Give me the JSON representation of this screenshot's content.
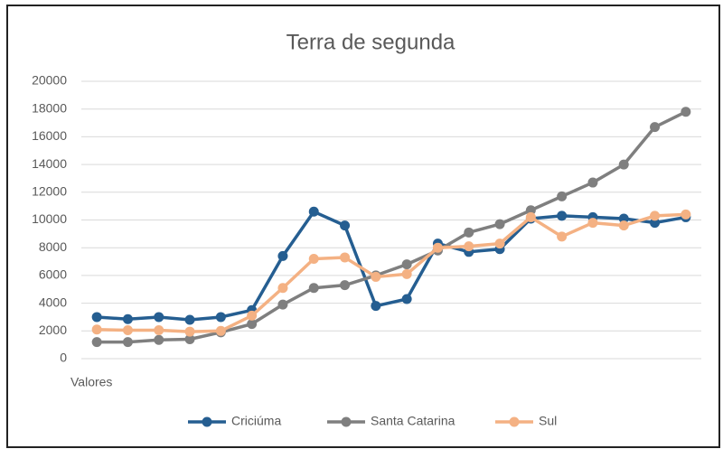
{
  "chart_data": {
    "type": "line",
    "title": "Terra de segunda",
    "xlabel": "Valores",
    "categories": [
      null,
      null,
      null,
      null,
      null,
      null,
      null,
      null,
      null,
      null,
      null,
      null,
      null,
      null,
      null,
      null,
      null,
      null,
      null,
      null
    ],
    "series": [
      {
        "name": "Criciúma",
        "color": "#255e91",
        "values": [
          3000,
          2850,
          3000,
          2800,
          3000,
          3500,
          7400,
          10600,
          9600,
          3800,
          4300,
          8300,
          7700,
          7900,
          10100,
          10300,
          10200,
          10100,
          9800,
          10200
        ]
      },
      {
        "name": "Santa Catarina",
        "color": "#7f7f7f",
        "values": [
          1200,
          1200,
          1350,
          1400,
          1900,
          2500,
          3900,
          5100,
          5300,
          6000,
          6800,
          7800,
          9100,
          9700,
          10700,
          11700,
          12700,
          14000,
          16700,
          17800
        ]
      },
      {
        "name": "Sul",
        "color": "#f4b183",
        "values": [
          2100,
          2050,
          2050,
          1950,
          2000,
          3100,
          5100,
          7200,
          7300,
          5900,
          6100,
          8000,
          8100,
          8300,
          10200,
          8800,
          9800,
          9600,
          10300,
          10400
        ]
      }
    ],
    "ylim": [
      0,
      20000
    ],
    "yticks": [
      0,
      2000,
      4000,
      6000,
      8000,
      10000,
      12000,
      14000,
      16000,
      18000,
      20000
    ],
    "grid": true,
    "legend": "bottom"
  }
}
